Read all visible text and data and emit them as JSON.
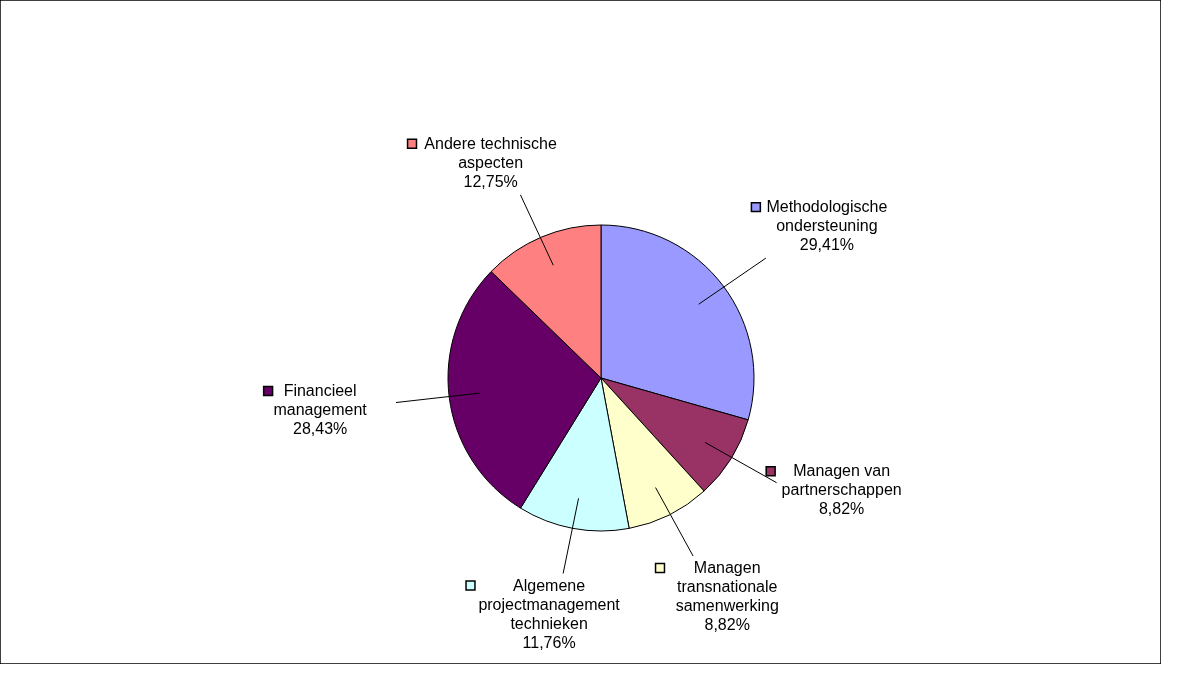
{
  "chart_data": {
    "type": "pie",
    "categories": [
      "Methodologische ondersteuning",
      "Managen van partnerschappen",
      "Managen transnationale samenwerking",
      "Algemene projectmanagement technieken",
      "Financieel management",
      "Andere technische aspecten"
    ],
    "values": [
      29.41,
      8.82,
      8.82,
      11.76,
      28.43,
      12.75
    ],
    "value_labels": [
      "29,41%",
      "8,82%",
      "8,82%",
      "11,76%",
      "28,43%",
      "12,75%"
    ],
    "legend": "bottom left",
    "colors": [
      "#9999ff",
      "#993366",
      "#ffffcc",
      "#ccffff",
      "#660066",
      "#ff8080"
    ]
  }
}
